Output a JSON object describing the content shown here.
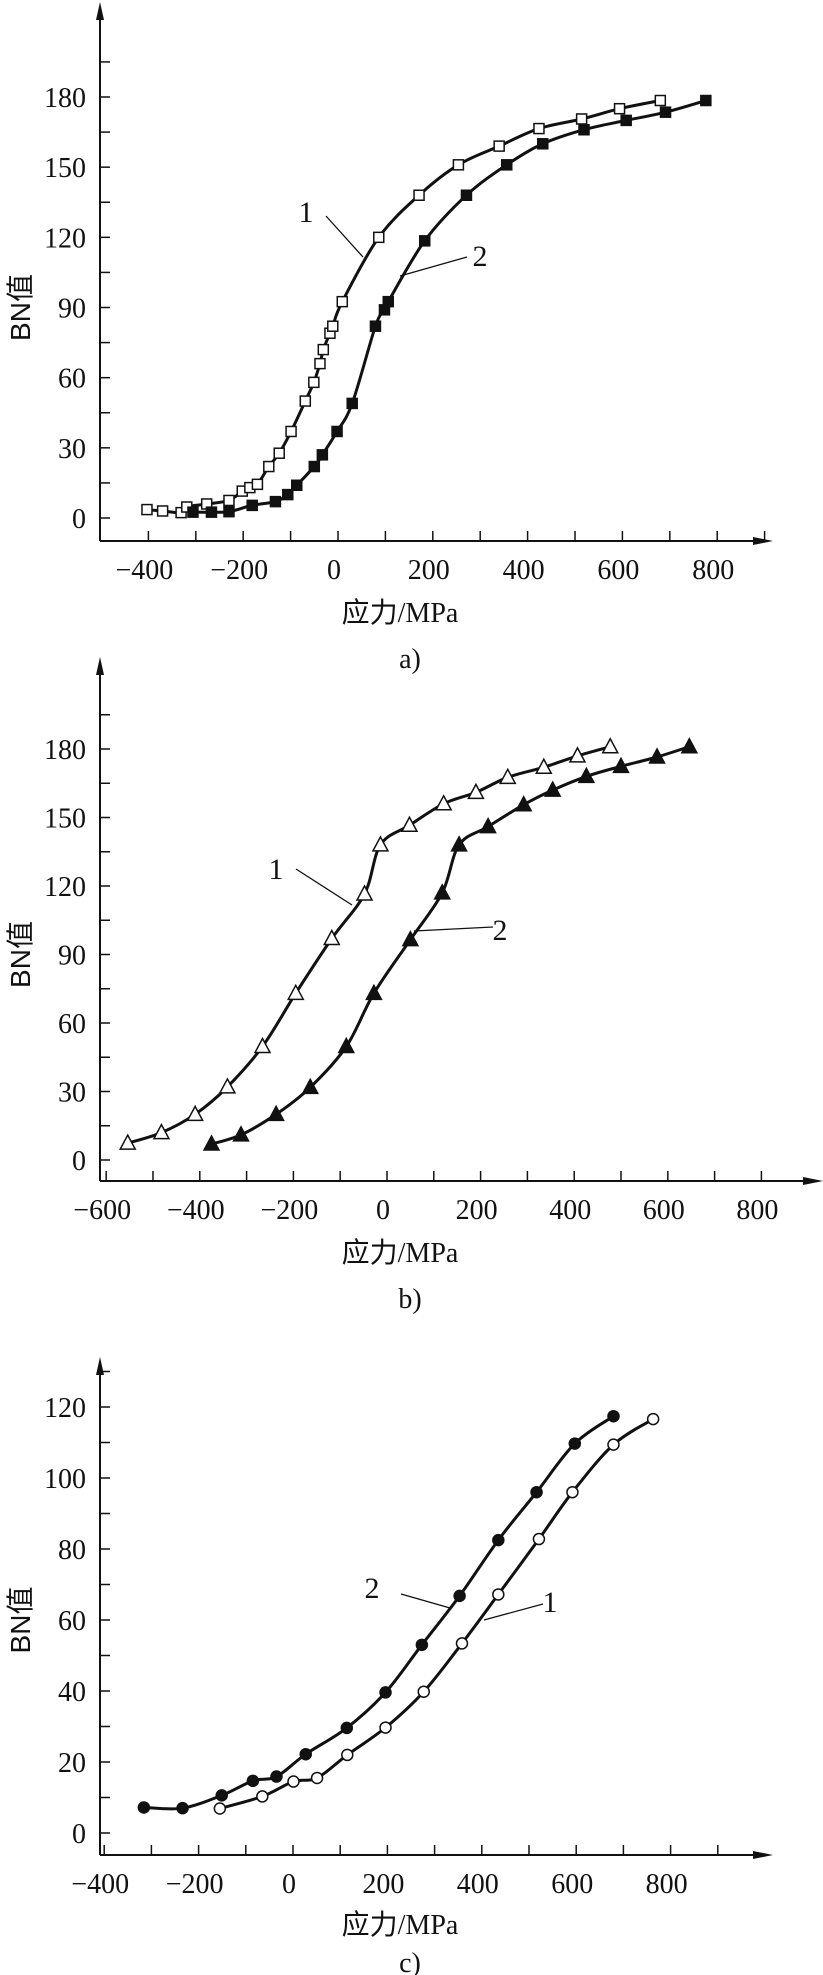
{
  "colors": {
    "ink": "#111111",
    "background": "#ffffff"
  },
  "chart_data": [
    {
      "type": "line",
      "panel_label": "a)",
      "xlabel": "应力/MPa",
      "ylabel": "BN值",
      "xlim": [
        -500,
        950
      ],
      "ylim": [
        -10,
        210
      ],
      "xticks": [
        -400,
        -200,
        0,
        200,
        400,
        600,
        800
      ],
      "xtick_labels": [
        "−400",
        "−200",
        "0",
        "200",
        "400",
        "600",
        "800"
      ],
      "yticks": [
        0,
        30,
        60,
        90,
        120,
        150,
        180
      ],
      "ytick_labels": [
        "0",
        "30",
        "60",
        "90",
        "120",
        "150",
        "180"
      ],
      "grid": false,
      "series": [
        {
          "name": "1",
          "marker": "open-square",
          "x": [
            -403,
            -370,
            -331,
            -319,
            -277,
            -230,
            -202,
            -186,
            -170,
            -146,
            -124,
            -99,
            -69,
            -51,
            -38,
            -31,
            -17,
            -11,
            9,
            86,
            171,
            254,
            340,
            424,
            514,
            594,
            680
          ],
          "y": [
            3.6,
            3,
            2.3,
            4.7,
            6,
            7.5,
            11.5,
            13,
            14.4,
            22,
            27.7,
            37,
            50,
            58,
            66,
            72,
            79,
            82,
            92.5,
            120,
            138,
            151,
            159,
            166.5,
            170.6,
            175,
            178.5
          ]
        },
        {
          "name": "2",
          "marker": "filled-square",
          "x": [
            -306,
            -267,
            -230,
            -181,
            -132,
            -106,
            -87,
            -50,
            -33,
            -2,
            30,
            79,
            98,
            106,
            183,
            271,
            356,
            432,
            519,
            608,
            691,
            776
          ],
          "y": [
            2.5,
            2.5,
            2.7,
            5.4,
            7,
            10,
            14,
            22,
            27,
            37,
            49,
            82,
            89,
            92.5,
            118.5,
            138,
            151,
            160,
            166,
            170,
            173.5,
            178.5
          ]
        }
      ]
    },
    {
      "type": "line",
      "panel_label": "b)",
      "xlabel": "应力/MPa",
      "ylabel": "BN值",
      "xlim": [
        -620,
        950
      ],
      "ylim": [
        -10,
        210
      ],
      "xticks": [
        -600,
        -400,
        -200,
        0,
        200,
        400,
        600,
        800
      ],
      "xtick_labels": [
        "−600",
        "−400",
        "−200",
        "0",
        "200",
        "400",
        "600",
        "800"
      ],
      "yticks": [
        0,
        30,
        60,
        90,
        120,
        150,
        180
      ],
      "ytick_labels": [
        "0",
        "30",
        "60",
        "90",
        "120",
        "150",
        "180"
      ],
      "grid": false,
      "series": [
        {
          "name": "1",
          "marker": "open-triangle",
          "x": [
            -554,
            -482,
            -410,
            -341,
            -266,
            -195,
            -118,
            -48,
            -14,
            48,
            121,
            190,
            258,
            335,
            407,
            477
          ],
          "y": [
            7.4,
            12,
            20,
            32,
            49.7,
            73,
            97,
            116.5,
            138,
            146.6,
            156,
            161,
            167.6,
            172,
            177,
            181
          ]
        },
        {
          "name": "2",
          "marker": "filled-triangle",
          "x": [
            -375,
            -312,
            -237,
            -164,
            -87,
            -28,
            50,
            118,
            154,
            216,
            292,
            354,
            426,
            500,
            577,
            646
          ],
          "y": [
            7,
            11,
            20,
            31.8,
            49.7,
            73,
            96.5,
            117,
            138,
            146,
            155.6,
            162,
            168,
            172.4,
            176.5,
            181
          ]
        }
      ]
    },
    {
      "type": "line",
      "panel_label": "c)",
      "xlabel": "应力/MPa",
      "ylabel": "BN值",
      "xlim": [
        -400,
        950
      ],
      "ylim": [
        -6,
        135
      ],
      "xticks": [
        -400,
        -200,
        0,
        200,
        400,
        600,
        800
      ],
      "xtick_labels": [
        "−400",
        "−200",
        "0",
        "200",
        "400",
        "600",
        "800"
      ],
      "yticks": [
        0,
        20,
        40,
        60,
        80,
        100,
        120
      ],
      "ytick_labels": [
        "0",
        "20",
        "40",
        "60",
        "80",
        "100",
        "120"
      ],
      "grid": false,
      "series": [
        {
          "name": "1",
          "marker": "open-circle",
          "x": [
            -155,
            -65,
            1,
            51,
            115,
            196,
            277,
            358,
            435,
            521,
            592,
            679,
            763
          ],
          "y": [
            6.9,
            10.3,
            14.5,
            15.5,
            22,
            29.7,
            39.8,
            53.4,
            67.2,
            82.8,
            96,
            109.4,
            116.6
          ]
        },
        {
          "name": "2",
          "marker": "filled-circle",
          "x": [
            -316,
            -234,
            -151,
            -85,
            -35,
            27,
            114,
            196,
            273,
            353,
            435,
            516,
            597,
            679
          ],
          "y": [
            7.2,
            7,
            10.6,
            14.7,
            15.9,
            22.2,
            29.6,
            39.6,
            53,
            66.8,
            82.5,
            96,
            109.7,
            117.4
          ]
        }
      ]
    }
  ]
}
